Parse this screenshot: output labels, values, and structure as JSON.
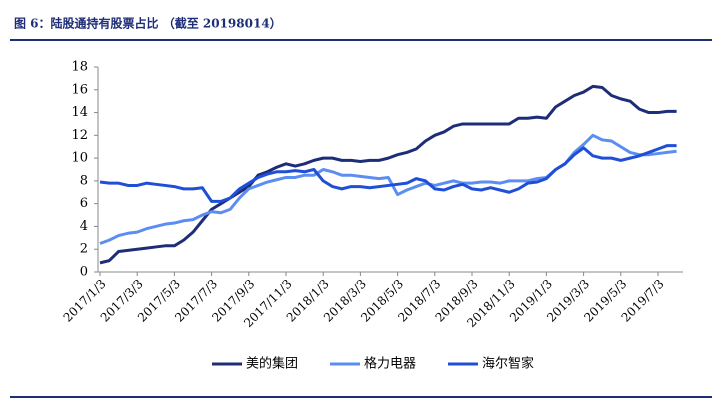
{
  "chart_data": {
    "type": "line",
    "title": "图 6：陆股通持有股票占比 （截至 20198014）",
    "categories": [
      "2017/1/3",
      null,
      null,
      null,
      "2017/3/3",
      null,
      null,
      null,
      "2017/5/3",
      null,
      null,
      null,
      "2017/7/3",
      null,
      null,
      null,
      "2017/9/3",
      null,
      null,
      null,
      "2017/11/3",
      null,
      null,
      null,
      "2018/1/3",
      null,
      null,
      null,
      "2018/3/3",
      null,
      null,
      null,
      "2018/5/3",
      null,
      null,
      null,
      "2018/7/3",
      null,
      null,
      null,
      "2018/9/3",
      null,
      null,
      null,
      "2018/11/3",
      null,
      null,
      null,
      "2019/1/3",
      null,
      null,
      null,
      "2019/3/3",
      null,
      null,
      null,
      "2019/5/3",
      null,
      null,
      null,
      "2019/7/3",
      null,
      null
    ],
    "ylim": [
      0,
      18
    ],
    "yticks": [
      0,
      2,
      4,
      6,
      8,
      10,
      12,
      14,
      16,
      18
    ],
    "grid": false,
    "legend": "bottom",
    "series": [
      {
        "name": "美的集团",
        "color": "#1e2d78",
        "values": [
          0.8,
          1.0,
          1.8,
          1.9,
          2.0,
          2.1,
          2.2,
          2.3,
          2.3,
          2.8,
          3.5,
          4.5,
          5.5,
          6.0,
          6.5,
          7.0,
          7.5,
          8.5,
          8.8,
          9.2,
          9.5,
          9.3,
          9.5,
          9.8,
          10.0,
          10.0,
          9.8,
          9.8,
          9.7,
          9.8,
          9.8,
          10.0,
          10.3,
          10.5,
          10.8,
          11.5,
          12.0,
          12.3,
          12.8,
          13.0,
          13.0,
          13.0,
          13.0,
          13.0,
          13.0,
          13.5,
          13.5,
          13.6,
          13.5,
          14.5,
          15.0,
          15.5,
          15.8,
          16.3,
          16.2,
          15.5,
          15.2,
          15.0,
          14.3,
          14.0,
          14.0,
          14.1,
          14.1
        ]
      },
      {
        "name": "格力电器",
        "color": "#5b8ef0",
        "values": [
          2.5,
          2.8,
          3.2,
          3.4,
          3.5,
          3.8,
          4.0,
          4.2,
          4.3,
          4.5,
          4.6,
          5.0,
          5.3,
          5.2,
          5.5,
          6.5,
          7.3,
          7.6,
          7.9,
          8.1,
          8.3,
          8.3,
          8.5,
          8.5,
          9.0,
          8.8,
          8.5,
          8.5,
          8.4,
          8.3,
          8.2,
          8.3,
          6.8,
          7.2,
          7.5,
          7.8,
          7.6,
          7.8,
          8.0,
          7.8,
          7.8,
          7.9,
          7.9,
          7.8,
          8.0,
          8.0,
          8.0,
          8.2,
          8.3,
          9.0,
          9.5,
          10.5,
          11.2,
          12.0,
          11.6,
          11.5,
          11.0,
          10.5,
          10.3,
          10.3,
          10.4,
          10.5,
          10.6
        ]
      },
      {
        "name": "海尔智家",
        "color": "#1f4fd6",
        "values": [
          7.9,
          7.8,
          7.8,
          7.6,
          7.6,
          7.8,
          7.7,
          7.6,
          7.5,
          7.3,
          7.3,
          7.4,
          6.2,
          6.2,
          6.5,
          7.3,
          7.8,
          8.3,
          8.6,
          8.8,
          8.8,
          8.9,
          8.8,
          9.0,
          8.0,
          7.5,
          7.3,
          7.5,
          7.5,
          7.4,
          7.5,
          7.6,
          7.7,
          7.8,
          8.2,
          8.0,
          7.3,
          7.2,
          7.5,
          7.7,
          7.3,
          7.2,
          7.4,
          7.2,
          7.0,
          7.3,
          7.8,
          7.9,
          8.2,
          9.0,
          9.5,
          10.3,
          10.9,
          10.2,
          10.0,
          10.0,
          9.8,
          10.0,
          10.2,
          10.5,
          10.8,
          11.1,
          11.1
        ]
      }
    ]
  }
}
